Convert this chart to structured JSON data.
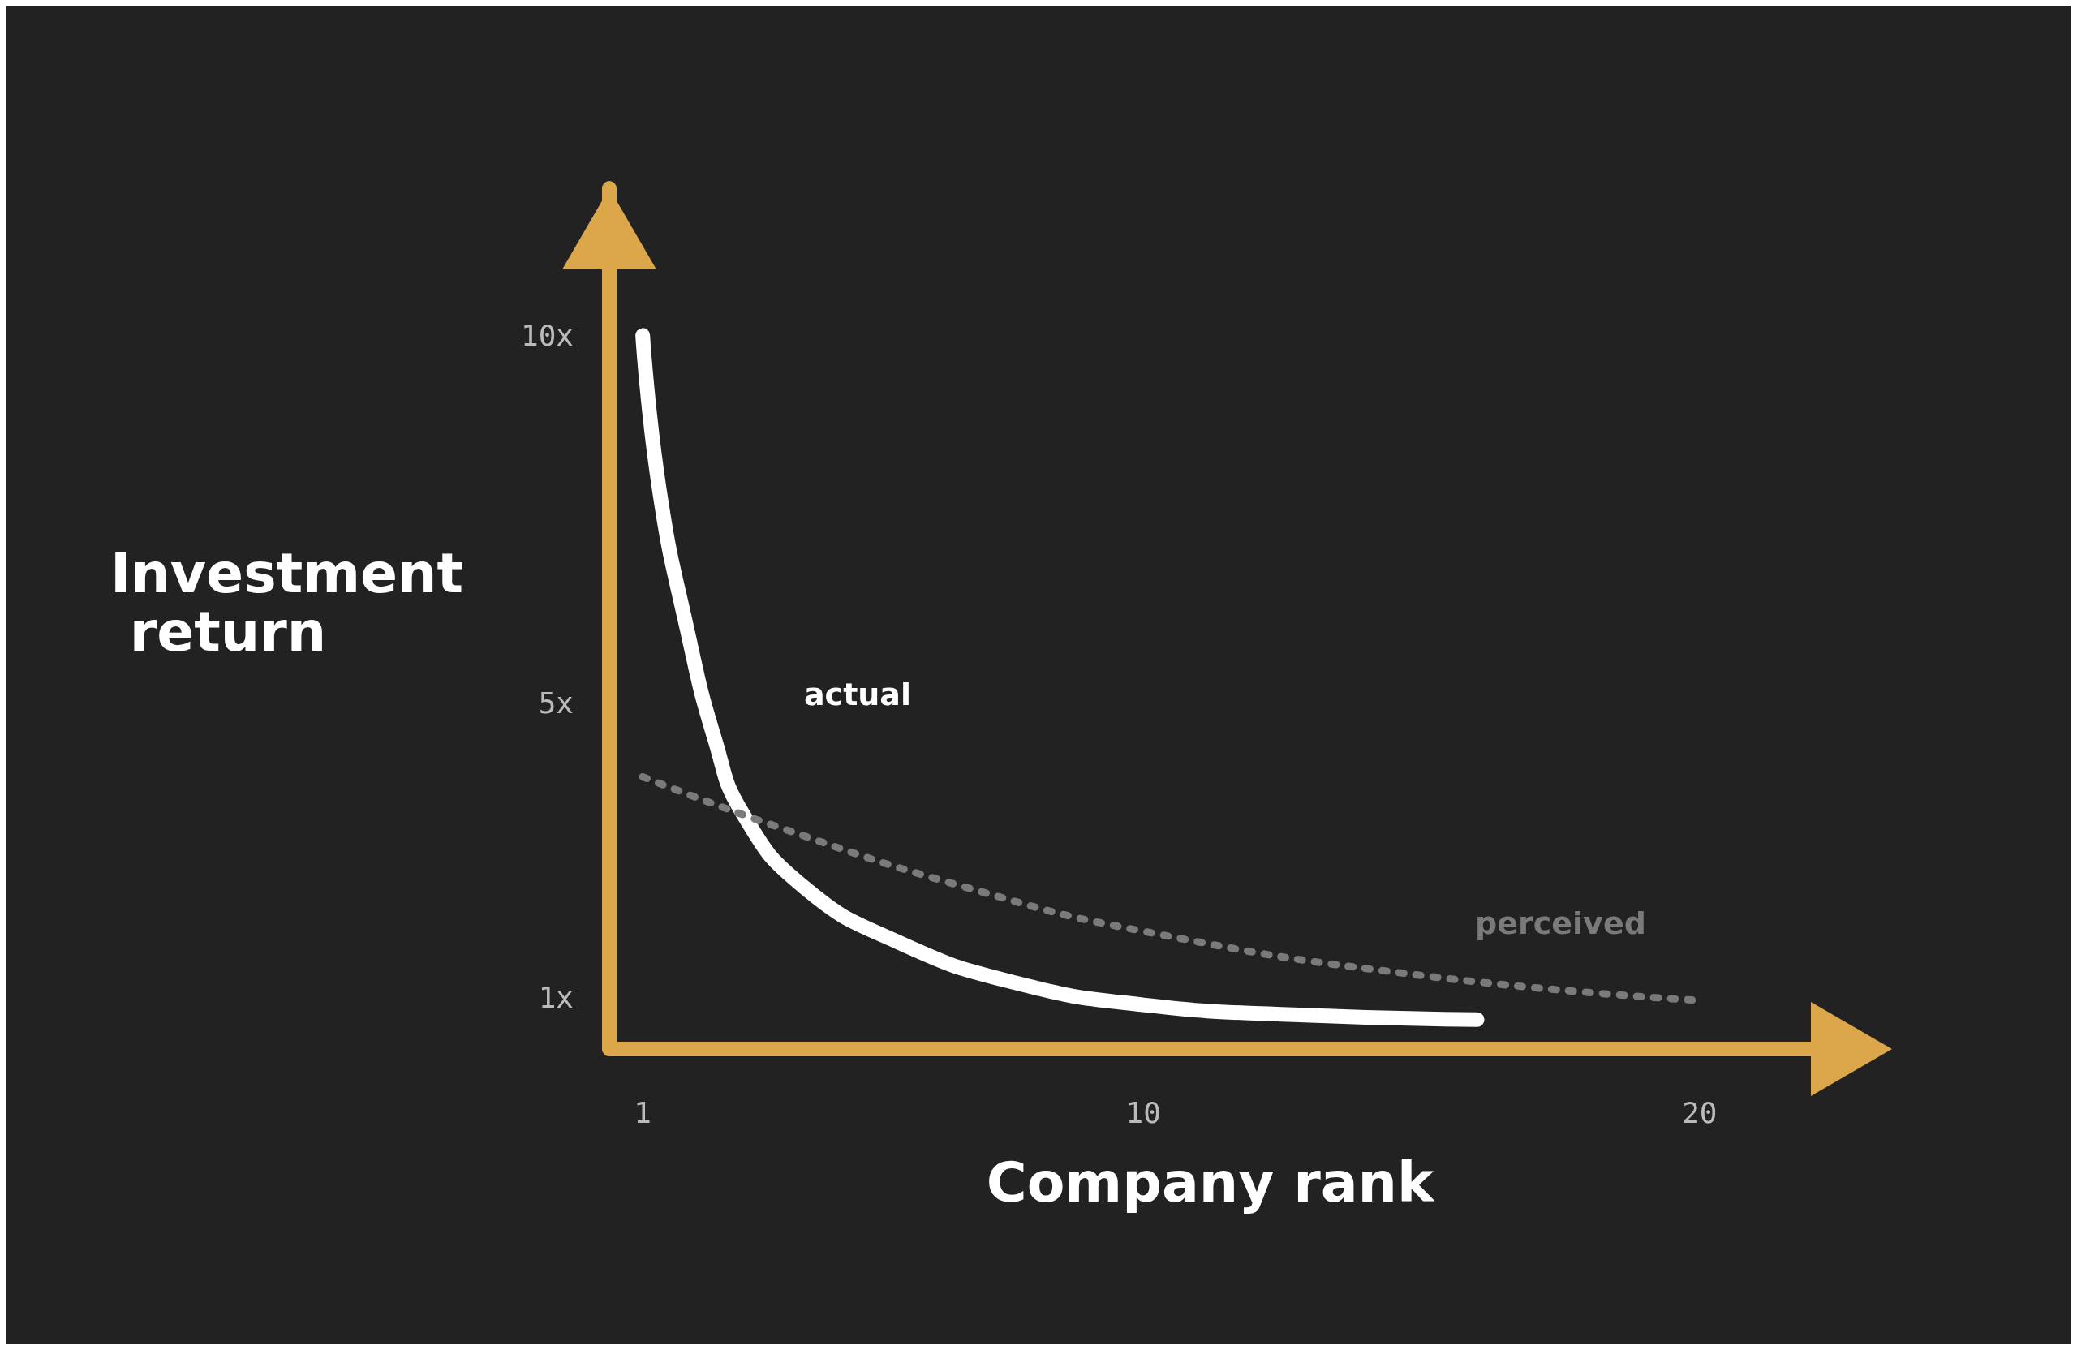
{
  "chart_data": {
    "type": "line",
    "xlabel": "Company rank",
    "ylabel": "Investment return",
    "xlim": [
      0.4,
      22
    ],
    "ylim": [
      0.3,
      12
    ],
    "xticks": [
      1,
      10,
      20
    ],
    "yticks": [
      {
        "value": 1,
        "label": "1x"
      },
      {
        "value": 5,
        "label": "5x"
      },
      {
        "value": 10,
        "label": "10x"
      }
    ],
    "grid": false,
    "marker": "none",
    "series": [
      {
        "color": "#ffffff",
        "line_style": "solid",
        "x": [
          1,
          1.3,
          1.8,
          2.3,
          2.8,
          3.9,
          5.6,
          7.7,
          10,
          12.9,
          16
        ],
        "values": [
          10,
          7.9,
          6.0,
          4.5,
          3.5,
          2.5,
          1.75,
          1.2,
          0.9,
          0.76,
          0.7
        ]
      },
      {
        "color": "#7a7a7a",
        "line_style": "dotted",
        "x": [
          1,
          3.5,
          6.8,
          10,
          15,
          20
        ],
        "values": [
          4.0,
          3.3,
          2.5,
          1.9,
          1.3,
          0.96
        ]
      }
    ],
    "annotations": [
      "actual",
      "perceived"
    ]
  }
}
